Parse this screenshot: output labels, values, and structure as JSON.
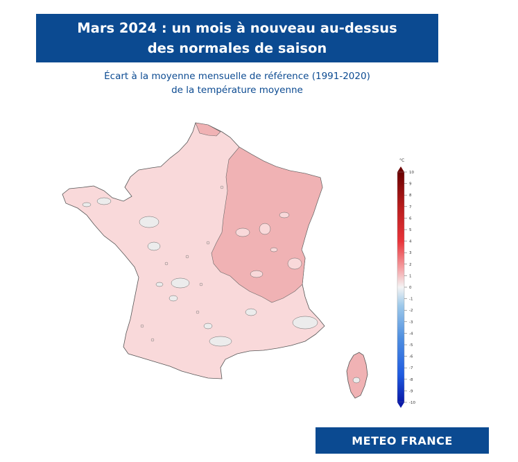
{
  "title": {
    "line1": "Mars 2024 : un mois à nouveau au-dessus",
    "line2": "des normales de saison"
  },
  "subtitle": {
    "line1": "Écart à la moyenne mensuelle de référence (1991-2020)",
    "line2": "de la température moyenne"
  },
  "legend": {
    "unit": "°C",
    "ticks": [
      "10",
      "9",
      "8",
      "7",
      "6",
      "5",
      "4",
      "3",
      "2",
      "1",
      "0",
      "-1",
      "-2",
      "-3",
      "-4",
      "-5",
      "-6",
      "-7",
      "-8",
      "-9",
      "-10"
    ],
    "colors": {
      "max": "#6b0000",
      "hot": "#e8343a",
      "warm": "#f5a3a6",
      "neutral": "#f4f4f4",
      "cool": "#9dc9ea",
      "cold": "#1f5be0",
      "min": "#0a1aa8"
    }
  },
  "map": {
    "fill_warm_west": "#f9d9da",
    "fill_warm_east": "#f0b2b4",
    "fill_neutral": "#ececec"
  },
  "footer": {
    "brand": "METEO FRANCE"
  }
}
